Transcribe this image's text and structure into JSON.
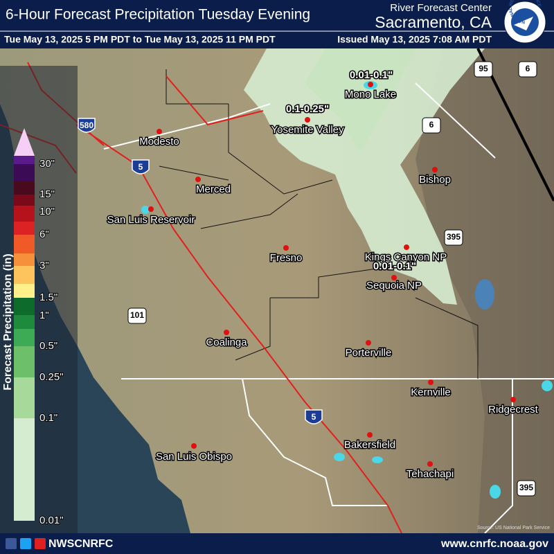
{
  "header": {
    "title": "6-Hour Forecast Precipitation Tuesday Evening",
    "center_line1": "River Forecast Center",
    "center_line2": "Sacramento, CA",
    "valid_period": "Tue May 13, 2025 5 PM PDT to Tue May 13, 2025 11 PM PDT",
    "issued": "Issued May 13, 2025 7:08 AM PDT",
    "logo_text": "NATIONAL WEATHER SERVICE"
  },
  "legend": {
    "title": "Forecast Precipitation (in)",
    "labels": [
      "30\"",
      "15\"",
      "10\"",
      "6\"",
      "3\"",
      "1.5\"",
      "1\"",
      "0.5\"",
      "0.25\"",
      "0.1\"",
      "0.01\""
    ],
    "arrow_color": "#f6cff6",
    "colors": [
      "#5b1a8a",
      "#3b0b55",
      "#4a0a1e",
      "#7a0a1a",
      "#b5121b",
      "#dc2222",
      "#f05a28",
      "#f7903a",
      "#fdc35c",
      "#fff08a",
      "#0d6b2b",
      "#1e8a3c",
      "#3daa55",
      "#6dbf6a",
      "#a6d99a",
      "#d6ecd0"
    ]
  },
  "map": {
    "contour_labels": [
      "0.01-0.1\"",
      "0.1-0.25\"",
      "0.01-0.1\""
    ],
    "places": [
      "Modesto",
      "Merced",
      "San Luis Reservoir",
      "Fresno",
      "Coalinga",
      "Porterville",
      "Kernville",
      "Ridgecrest",
      "Bakersfield",
      "Tehachapi",
      "San Luis Obispo",
      "Mono Lake",
      "Yosemite Valley",
      "Bishop",
      "Kings Canyon NP",
      "Sequoia NP"
    ],
    "highways": [
      "580",
      "5",
      "101",
      "5",
      "395",
      "95",
      "6",
      "6",
      "395"
    ],
    "credit": "Source: US National Park Service"
  },
  "footer": {
    "handle": "NWSCNRFC",
    "website": "www.cnrfc.noaa.gov"
  }
}
